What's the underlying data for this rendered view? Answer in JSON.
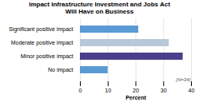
{
  "chart_data": {
    "type": "bar",
    "orientation": "horizontal",
    "title": "Impact Infrastructure Investment and Jobs Act",
    "subtitle": "Will Have on Business",
    "categories": [
      "Significant positive impact",
      "Moderate positive impact",
      "Minor positive impact",
      "No impact"
    ],
    "values": [
      21,
      32,
      37,
      10
    ],
    "colors": [
      "#5b9bd5",
      "#b8c8d8",
      "#4b3f8c",
      "#5b9bd5"
    ],
    "xlabel": "Percent",
    "xlim": [
      0,
      40
    ],
    "xticks": [
      0,
      10,
      20,
      30,
      40
    ],
    "grid": true,
    "annotations": [
      {
        "text": "(N=34)"
      }
    ]
  }
}
